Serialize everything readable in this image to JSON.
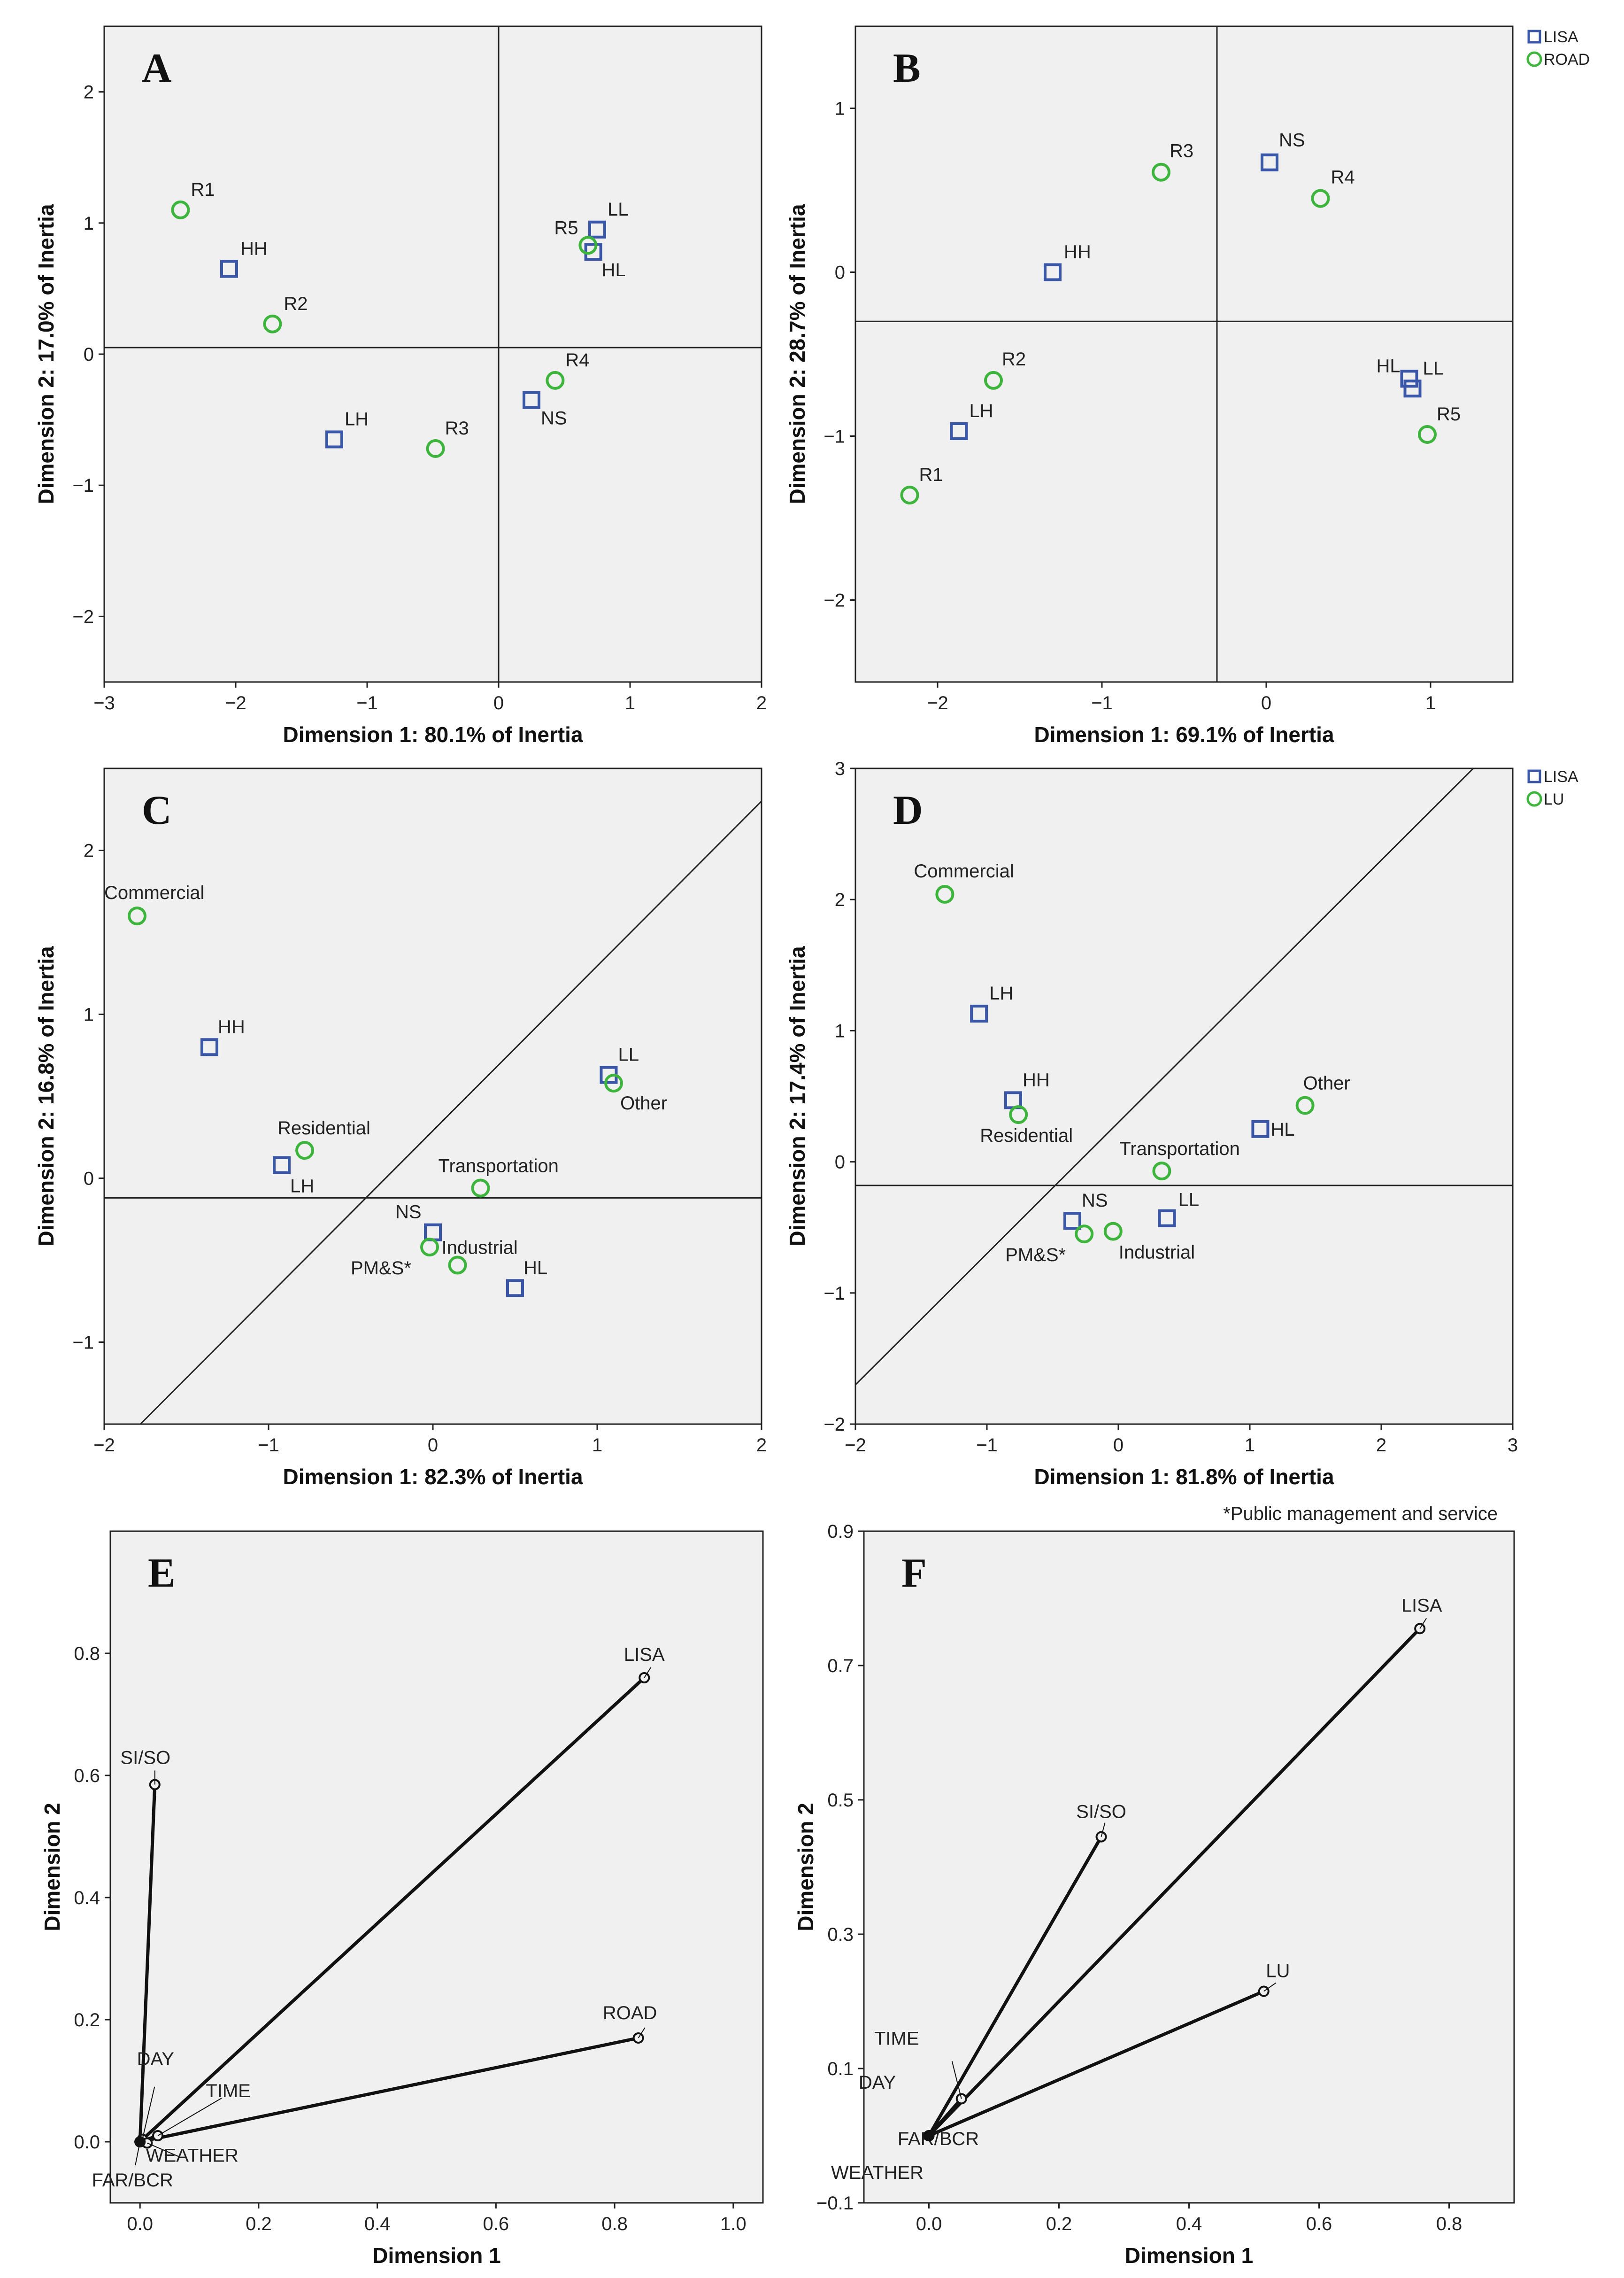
{
  "legends": {
    "top": [
      "LISA",
      "ROAD"
    ],
    "middle": [
      "LISA",
      "LU"
    ],
    "colors": {
      "LISA": "#3a56a8",
      "ROAD": "#3db53d",
      "LU": "#3db53d"
    }
  },
  "footnote": "*Public management and service",
  "chart_data": [
    {
      "id": "A",
      "type": "scatter",
      "letter": "A",
      "xlabel": "Dimension 1: 80.1% of Inertia",
      "ylabel": "Dimension 2: 17.0% of Inertia",
      "xlim": [
        -3,
        2
      ],
      "ylim": [
        -2.5,
        2.5
      ],
      "xticks": [
        -3,
        -2,
        -1,
        0,
        1,
        2
      ],
      "yticks": [
        -2,
        -1,
        0,
        1,
        2
      ],
      "refLines": [
        {
          "type": "v",
          "x": 0
        },
        {
          "type": "h",
          "y": 0.05
        }
      ],
      "series": [
        {
          "name": "LISA",
          "marker": "square",
          "points": [
            {
              "label": "HH",
              "x": -2.05,
              "y": 0.65
            },
            {
              "label": "LH",
              "x": -1.25,
              "y": -0.65
            },
            {
              "label": "LL",
              "x": 0.75,
              "y": 0.95
            },
            {
              "label": "HL",
              "x": 0.72,
              "y": 0.78
            },
            {
              "label": "NS",
              "x": 0.25,
              "y": -0.35
            }
          ]
        },
        {
          "name": "ROAD",
          "marker": "circle",
          "points": [
            {
              "label": "R1",
              "x": -2.42,
              "y": 1.1
            },
            {
              "label": "R2",
              "x": -1.72,
              "y": 0.23
            },
            {
              "label": "R3",
              "x": -0.48,
              "y": -0.72
            },
            {
              "label": "R4",
              "x": 0.43,
              "y": -0.2
            },
            {
              "label": "R5",
              "x": 0.68,
              "y": 0.83
            }
          ]
        }
      ]
    },
    {
      "id": "B",
      "type": "scatter",
      "letter": "B",
      "xlabel": "Dimension 1: 69.1% of Inertia",
      "ylabel": "Dimension 2: 28.7% of Inertia",
      "xlim": [
        -2.5,
        1.5
      ],
      "ylim": [
        -2.5,
        1.5
      ],
      "xticks": [
        -2,
        -1,
        0,
        1
      ],
      "yticks": [
        -2,
        -1,
        0,
        1
      ],
      "refLines": [
        {
          "type": "v",
          "x": -0.3
        },
        {
          "type": "h",
          "y": -0.3
        }
      ],
      "series": [
        {
          "name": "LISA",
          "marker": "square",
          "points": [
            {
              "label": "HH",
              "x": -1.3,
              "y": 0.0
            },
            {
              "label": "LH",
              "x": -1.87,
              "y": -0.97
            },
            {
              "label": "NS",
              "x": 0.02,
              "y": 0.67
            },
            {
              "label": "HL",
              "x": 0.87,
              "y": -0.65
            },
            {
              "label": "LL",
              "x": 0.89,
              "y": -0.71
            }
          ]
        },
        {
          "name": "ROAD",
          "marker": "circle",
          "points": [
            {
              "label": "R1",
              "x": -2.17,
              "y": -1.36
            },
            {
              "label": "R2",
              "x": -1.66,
              "y": -0.66
            },
            {
              "label": "R3",
              "x": -0.64,
              "y": 0.61
            },
            {
              "label": "R4",
              "x": 0.33,
              "y": 0.45
            },
            {
              "label": "R5",
              "x": 0.98,
              "y": -0.99
            }
          ]
        }
      ]
    },
    {
      "id": "C",
      "type": "scatter",
      "letter": "C",
      "xlabel": "Dimension 1: 82.3% of Inertia",
      "ylabel": "Dimension 2: 16.8% of Inertia",
      "xlim": [
        -2,
        2
      ],
      "ylim": [
        -1.5,
        2.5
      ],
      "xticks": [
        -2,
        -1,
        0,
        1,
        2
      ],
      "yticks": [
        -1,
        0,
        1,
        2
      ],
      "refLines": [
        {
          "type": "h",
          "y": -0.12
        },
        {
          "type": "seg",
          "x1": -1.78,
          "y1": -1.5,
          "x2": 2.0,
          "y2": 2.3
        }
      ],
      "series": [
        {
          "name": "LISA",
          "marker": "square",
          "points": [
            {
              "label": "HH",
              "x": -1.36,
              "y": 0.8
            },
            {
              "label": "LH",
              "x": -0.92,
              "y": 0.08
            },
            {
              "label": "LL",
              "x": 1.07,
              "y": 0.63
            },
            {
              "label": "NS",
              "x": 0.0,
              "y": -0.33
            },
            {
              "label": "HL",
              "x": 0.5,
              "y": -0.67
            }
          ]
        },
        {
          "name": "LU",
          "marker": "circle",
          "points": [
            {
              "label": "Commercial",
              "x": -1.8,
              "y": 1.6
            },
            {
              "label": "Residential",
              "x": -0.78,
              "y": 0.17
            },
            {
              "label": "Other",
              "x": 1.1,
              "y": 0.58
            },
            {
              "label": "Transportation",
              "x": 0.29,
              "y": -0.06
            },
            {
              "label": "Industrial",
              "x": 0.15,
              "y": -0.53
            },
            {
              "label": "PM&S*",
              "x": -0.02,
              "y": -0.42
            }
          ]
        }
      ]
    },
    {
      "id": "D",
      "type": "scatter",
      "letter": "D",
      "xlabel": "Dimension 1: 81.8% of Inertia",
      "ylabel": "Dimension 2: 17.4% of Inertia",
      "xlim": [
        -2,
        3
      ],
      "ylim": [
        -2,
        3
      ],
      "xticks": [
        -2,
        -1,
        0,
        1,
        2,
        3
      ],
      "yticks": [
        -2,
        -1,
        0,
        1,
        2,
        3
      ],
      "refLines": [
        {
          "type": "h",
          "y": -0.18
        },
        {
          "type": "seg",
          "x1": -2.0,
          "y1": -1.7,
          "x2": 2.7,
          "y2": 3.0
        }
      ],
      "series": [
        {
          "name": "LISA",
          "marker": "square",
          "points": [
            {
              "label": "LH",
              "x": -1.06,
              "y": 1.13
            },
            {
              "label": "HH",
              "x": -0.8,
              "y": 0.47
            },
            {
              "label": "HL",
              "x": 1.08,
              "y": 0.25
            },
            {
              "label": "NS",
              "x": -0.35,
              "y": -0.45
            },
            {
              "label": "LL",
              "x": 0.37,
              "y": -0.43
            }
          ]
        },
        {
          "name": "LU",
          "marker": "circle",
          "points": [
            {
              "label": "Commercial",
              "x": -1.32,
              "y": 2.04
            },
            {
              "label": "Residential",
              "x": -0.76,
              "y": 0.36
            },
            {
              "label": "Other",
              "x": 1.42,
              "y": 0.43
            },
            {
              "label": "Transportation",
              "x": 0.33,
              "y": -0.07
            },
            {
              "label": "PM&S*",
              "x": -0.26,
              "y": -0.55
            },
            {
              "label": "Industrial",
              "x": -0.04,
              "y": -0.53
            }
          ]
        }
      ]
    },
    {
      "id": "E",
      "type": "vector",
      "letter": "E",
      "xlabel": "Dimension 1",
      "ylabel": "Dimension 2",
      "xlim": [
        -0.05,
        1.05
      ],
      "ylim": [
        -0.1,
        1.0
      ],
      "xticks": [
        0.0,
        0.2,
        0.4,
        0.6,
        0.8,
        1.0
      ],
      "yticks": [
        0.0,
        0.2,
        0.4,
        0.6,
        0.8
      ],
      "tickFormat": 1,
      "vectors": [
        {
          "label": "LISA",
          "x": 0.85,
          "y": 0.76
        },
        {
          "label": "ROAD",
          "x": 0.84,
          "y": 0.17
        },
        {
          "label": "SI/SO",
          "x": 0.025,
          "y": 0.585
        },
        {
          "label": "DAY",
          "x": 0.004,
          "y": 0.004
        },
        {
          "label": "TIME",
          "x": 0.03,
          "y": 0.01
        },
        {
          "label": "WEATHER",
          "x": 0.012,
          "y": -0.002
        },
        {
          "label": "FAR/BCR",
          "x": 0.0,
          "y": 0.0
        }
      ]
    },
    {
      "id": "F",
      "type": "vector",
      "letter": "F",
      "xlabel": "Dimension 1",
      "ylabel": "Dimension 2",
      "xlim": [
        -0.1,
        0.9
      ],
      "ylim": [
        -0.1,
        0.9
      ],
      "xticks": [
        0.0,
        0.2,
        0.4,
        0.6,
        0.8
      ],
      "yticks": [
        -0.1,
        0.1,
        0.3,
        0.5,
        0.7,
        0.9
      ],
      "tickFormat": 1,
      "vectors": [
        {
          "label": "LISA",
          "x": 0.755,
          "y": 0.755
        },
        {
          "label": "SI/SO",
          "x": 0.265,
          "y": 0.445
        },
        {
          "label": "LU",
          "x": 0.515,
          "y": 0.215
        },
        {
          "label": "TIME",
          "x": 0.05,
          "y": 0.055
        },
        {
          "label": "DAY",
          "x": 0.0,
          "y": 0.0
        },
        {
          "label": "FAR/BCR",
          "x": 0.0,
          "y": 0.0
        },
        {
          "label": "WEATHER",
          "x": 0.0,
          "y": 0.0
        }
      ]
    }
  ]
}
